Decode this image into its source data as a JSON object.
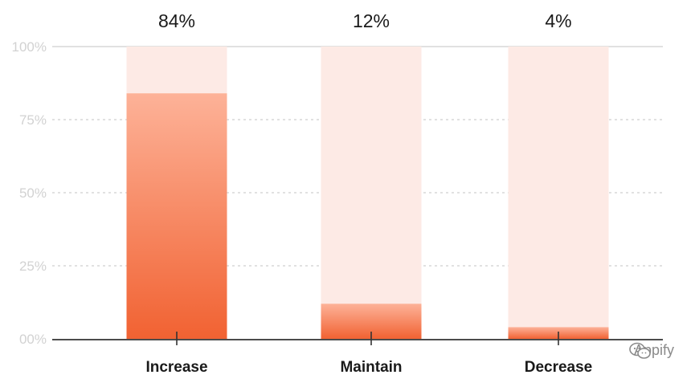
{
  "chart_data": {
    "type": "bar",
    "categories": [
      "Increase",
      "Maintain",
      "Decrease"
    ],
    "values": [
      84,
      12,
      4
    ],
    "value_labels": [
      "84%",
      "12%",
      "4%"
    ],
    "ylim": [
      0,
      100
    ],
    "yticks": [
      0,
      25,
      50,
      75,
      100
    ],
    "ytick_labels": [
      "00%",
      "25%",
      "50%",
      "75%",
      "100%"
    ],
    "grid": true,
    "colors": {
      "bar_top": "#fdb298",
      "bar_bottom": "#f16232",
      "track": "#fdeae5",
      "grid": "#cfcfcf",
      "axis": "#333333"
    }
  },
  "watermark": {
    "text": "Appify",
    "icon": "wechat-icon"
  }
}
